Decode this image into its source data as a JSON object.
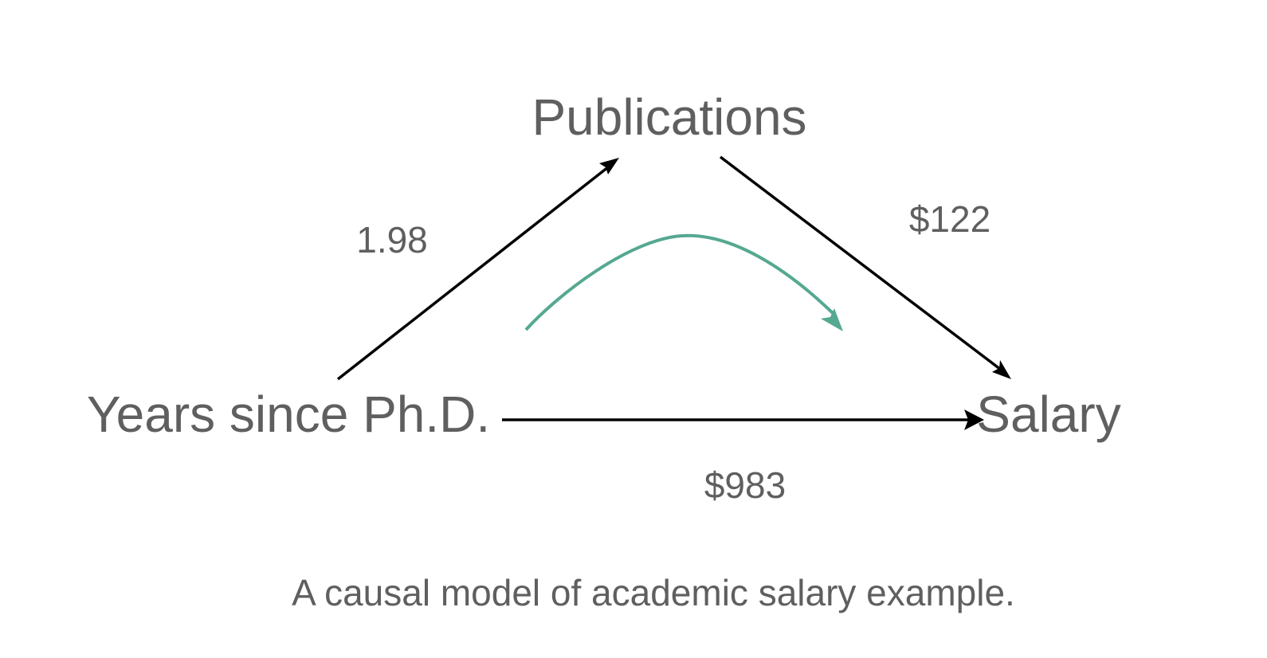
{
  "diagram": {
    "nodes": {
      "publications": "Publications",
      "years": "Years since Ph.D.",
      "salary": "Salary"
    },
    "edges": {
      "years_to_publications": "1.98",
      "publications_to_salary": "$122",
      "years_to_salary": "$983"
    },
    "caption": "A causal model of academic salary example."
  },
  "colors": {
    "text": "#5f5f5f",
    "arrow": "#000000",
    "indirect_effect_arrow": "#55a891"
  }
}
